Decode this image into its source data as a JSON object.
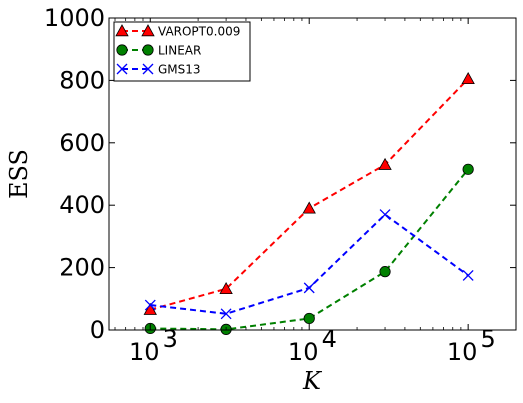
{
  "chart_data": {
    "type": "line",
    "title": "",
    "xlabel": "K",
    "ylabel": "ESS",
    "xscale": "log",
    "xlim": [
      550,
      200000
    ],
    "ylim": [
      0,
      1000
    ],
    "grid": false,
    "legend_position": "top-left",
    "x_tick_labels": [
      {
        "value": 1000,
        "base": "10",
        "exp": "3"
      },
      {
        "value": 10000,
        "base": "10",
        "exp": "4"
      },
      {
        "value": 100000,
        "base": "10",
        "exp": "5"
      }
    ],
    "y_tick_labels": [
      {
        "value": 0,
        "label": "0"
      },
      {
        "value": 200,
        "label": "200"
      },
      {
        "value": 400,
        "label": "400"
      },
      {
        "value": 600,
        "label": "600"
      },
      {
        "value": 800,
        "label": "800"
      },
      {
        "value": 1000,
        "label": "1000"
      }
    ],
    "x": [
      1000,
      3000,
      10000,
      30000,
      100000
    ],
    "series": [
      {
        "name": "VAROPT0.009",
        "color": "#ff0000",
        "marker": "triangle",
        "values": [
          65,
          132,
          390,
          530,
          805
        ]
      },
      {
        "name": "LINEAR",
        "color": "#008000",
        "marker": "circle",
        "values": [
          5,
          2,
          37,
          187,
          515
        ]
      },
      {
        "name": "GMS13",
        "color": "#0000ff",
        "marker": "x",
        "values": [
          80,
          52,
          135,
          370,
          175
        ]
      }
    ]
  }
}
